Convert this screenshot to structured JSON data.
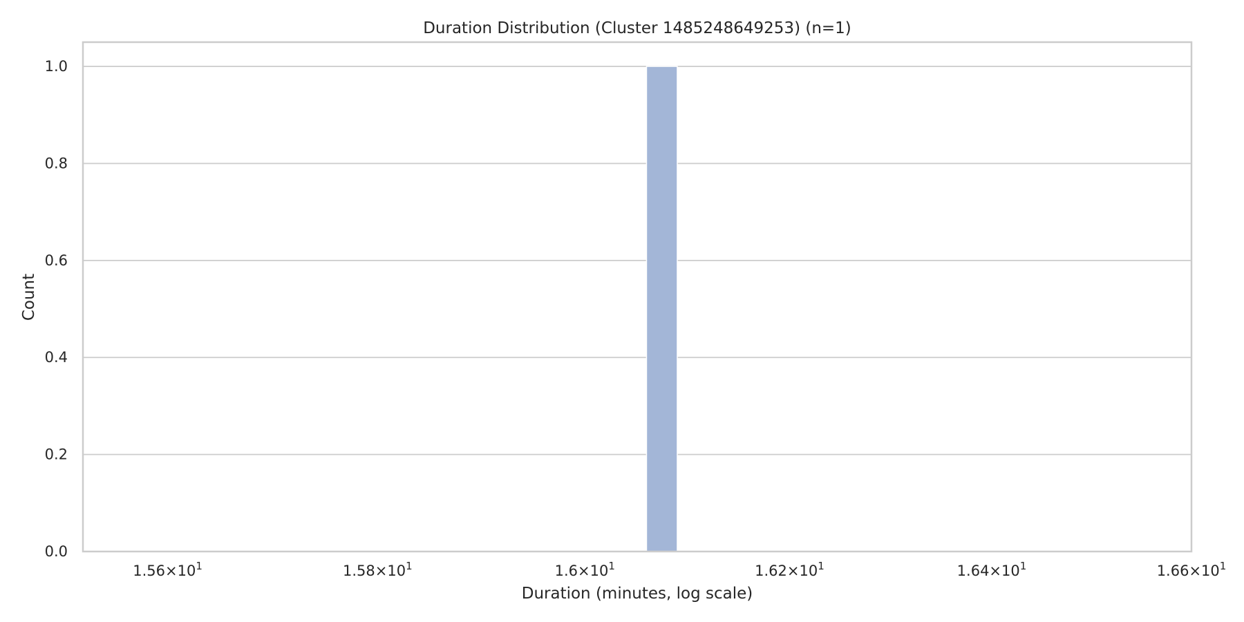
{
  "chart_data": {
    "type": "bar",
    "title": "Duration Distribution (Cluster 1485248649253)  (n=1)",
    "xlabel": "Duration (minutes, log scale)",
    "ylabel": "Count",
    "x_scale": "log",
    "xlim": [
      15.52,
      16.6
    ],
    "ylim": [
      0,
      1.05
    ],
    "x_ticks": [
      15.6,
      15.8,
      16.0,
      16.2,
      16.4,
      16.6
    ],
    "x_tick_labels": [
      {
        "mantissa": "1.56",
        "exponent": "1"
      },
      {
        "mantissa": "1.58",
        "exponent": "1"
      },
      {
        "mantissa": "1.6",
        "exponent": "1"
      },
      {
        "mantissa": "1.62",
        "exponent": "1"
      },
      {
        "mantissa": "1.64",
        "exponent": "1"
      },
      {
        "mantissa": "1.66",
        "exponent": "1"
      }
    ],
    "y_ticks": [
      0.0,
      0.2,
      0.4,
      0.6,
      0.8,
      1.0
    ],
    "y_tick_labels": [
      "0.0",
      "0.2",
      "0.4",
      "0.6",
      "0.8",
      "1.0"
    ],
    "bins": [
      {
        "x_start": 16.06,
        "x_end": 16.09,
        "count": 1
      }
    ],
    "grid": "horizontal",
    "legend": "none",
    "bar_color": "#a3b6d7",
    "bar_edge_color": "#ffffff",
    "grid_color": "#cccccc",
    "frame_color": "#cccccc"
  }
}
